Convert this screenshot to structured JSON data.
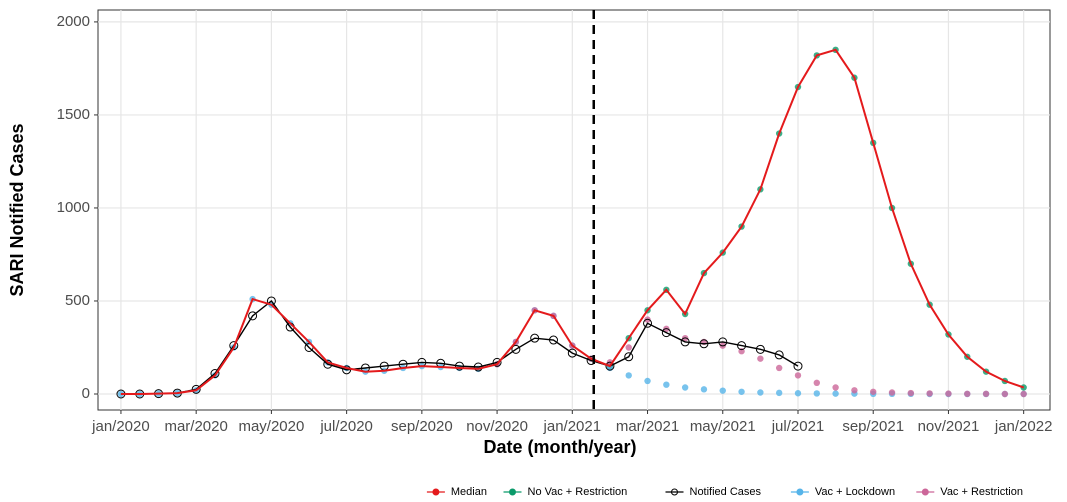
{
  "chart_data": {
    "type": "line",
    "xlabel": "Date (month/year)",
    "ylabel": "SARI Notified Cases",
    "xlim": [
      -0.61,
      24.7
    ],
    "ylim": [
      -86,
      2064
    ],
    "xticks": [
      {
        "value": 0,
        "label": "jan/2020"
      },
      {
        "value": 2,
        "label": "mar/2020"
      },
      {
        "value": 4,
        "label": "may/2020"
      },
      {
        "value": 6,
        "label": "jul/2020"
      },
      {
        "value": 8,
        "label": "sep/2020"
      },
      {
        "value": 10,
        "label": "nov/2020"
      },
      {
        "value": 12,
        "label": "jan/2021"
      },
      {
        "value": 14,
        "label": "mar/2021"
      },
      {
        "value": 16,
        "label": "may/2021"
      },
      {
        "value": 18,
        "label": "jul/2021"
      },
      {
        "value": 20,
        "label": "sep/2021"
      },
      {
        "value": 22,
        "label": "nov/2021"
      },
      {
        "value": 24,
        "label": "jan/2022"
      }
    ],
    "yticks": [
      0,
      500,
      1000,
      1500,
      2000
    ],
    "grid": true,
    "vline": 12.57,
    "legend": "bottom-right",
    "x": [
      0,
      0.5,
      1,
      1.5,
      2,
      2.5,
      3,
      3.5,
      4,
      4.5,
      5,
      5.5,
      6,
      6.5,
      7,
      7.5,
      8,
      8.5,
      9,
      9.5,
      10,
      10.5,
      11,
      11.5,
      12,
      12.5,
      13,
      13.5,
      14,
      14.5,
      15,
      15.5,
      16,
      16.5,
      17,
      17.5,
      18,
      18.5,
      19,
      19.5,
      20,
      20.5,
      21,
      21.5,
      22,
      22.5,
      23,
      23.5,
      24
    ],
    "series": [
      {
        "name": "Median",
        "color": "#e41a1c",
        "style": "line",
        "values": [
          0,
          0,
          2,
          5,
          20,
          100,
          250,
          510,
          480,
          380,
          280,
          170,
          140,
          120,
          125,
          140,
          150,
          145,
          140,
          135,
          160,
          280,
          450,
          420,
          260,
          190,
          150,
          300,
          450,
          560,
          430,
          650,
          760,
          900,
          1100,
          1400,
          1650,
          1820,
          1850,
          1700,
          1350,
          1000,
          700,
          480,
          320,
          200,
          120,
          70,
          35
        ]
      },
      {
        "name": "No Vac + Restriction",
        "color": "#0b9a6a",
        "style": "points",
        "values": [
          null,
          null,
          null,
          null,
          null,
          null,
          null,
          null,
          null,
          null,
          null,
          null,
          null,
          null,
          null,
          null,
          null,
          null,
          null,
          null,
          null,
          null,
          null,
          null,
          null,
          null,
          150,
          300,
          450,
          560,
          430,
          650,
          760,
          900,
          1100,
          1400,
          1650,
          1820,
          1850,
          1700,
          1350,
          1000,
          700,
          480,
          320,
          200,
          120,
          70,
          35
        ]
      },
      {
        "name": "Notified Cases",
        "color": "#000000",
        "style": "line-points",
        "values": [
          0,
          0,
          2,
          5,
          25,
          110,
          260,
          420,
          500,
          360,
          250,
          160,
          130,
          140,
          150,
          160,
          170,
          165,
          150,
          145,
          170,
          240,
          300,
          290,
          220,
          180,
          150,
          200,
          380,
          330,
          280,
          270,
          280,
          260,
          240,
          210,
          150,
          null,
          null,
          null,
          null,
          null,
          null,
          null,
          null,
          null,
          null,
          null,
          null
        ]
      },
      {
        "name": "Vac + Lockdown",
        "color": "#56b4e9",
        "style": "points",
        "values": [
          0,
          0,
          2,
          5,
          20,
          100,
          250,
          510,
          480,
          380,
          280,
          170,
          140,
          120,
          125,
          140,
          150,
          145,
          140,
          135,
          160,
          280,
          450,
          420,
          260,
          190,
          140,
          100,
          70,
          50,
          35,
          25,
          18,
          12,
          8,
          6,
          4,
          3,
          2,
          2,
          1,
          1,
          1,
          0,
          0,
          0,
          0,
          0,
          0
        ]
      },
      {
        "name": "Vac + Restriction",
        "color": "#cc6699",
        "style": "points",
        "values": [
          null,
          null,
          null,
          null,
          null,
          null,
          null,
          null,
          null,
          null,
          null,
          null,
          null,
          null,
          null,
          null,
          null,
          null,
          null,
          null,
          160,
          280,
          450,
          420,
          260,
          190,
          170,
          250,
          400,
          350,
          300,
          280,
          260,
          230,
          190,
          140,
          100,
          60,
          35,
          20,
          12,
          8,
          5,
          3,
          2,
          1,
          1,
          0,
          0
        ]
      }
    ]
  }
}
